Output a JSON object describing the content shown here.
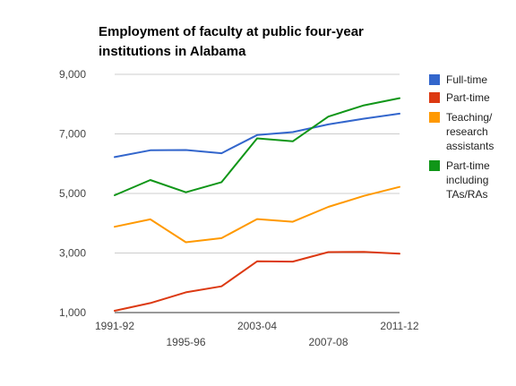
{
  "chart_data": {
    "type": "line",
    "title_lines": [
      "Employment of faculty at public four-year",
      "institutions in Alabama"
    ],
    "xlabel": "",
    "ylabel": "",
    "x_ticks_row1": [
      "1991-92",
      "2003-04",
      "2011-12"
    ],
    "x_ticks_row2": [
      "1995-96",
      "2007-08"
    ],
    "y_ticks": [
      "9,000",
      "7,000",
      "5,000",
      "3,000",
      "1,000"
    ],
    "ylim": [
      1000,
      9000
    ],
    "grid": true,
    "legend_position": "right",
    "series": [
      {
        "name_lines": [
          "Full-time"
        ],
        "color": "#3366cc",
        "values": [
          6220,
          6450,
          6460,
          6350,
          6960,
          7060,
          7320,
          7510,
          7680
        ]
      },
      {
        "name_lines": [
          "Part-time"
        ],
        "color": "#dc3912",
        "values": [
          1060,
          1320,
          1680,
          1880,
          2720,
          2710,
          3030,
          3040,
          2980
        ]
      },
      {
        "name_lines": [
          "Teaching/",
          "research",
          "assistants"
        ],
        "color": "#ff9900",
        "values": [
          3880,
          4130,
          3360,
          3500,
          4140,
          4050,
          4550,
          4920,
          5220
        ]
      },
      {
        "name_lines": [
          "Part-time",
          "including",
          "TAs/RAs"
        ],
        "color": "#109618",
        "values": [
          4940,
          5450,
          5040,
          5380,
          6850,
          6750,
          7580,
          7960,
          8200
        ]
      }
    ]
  }
}
